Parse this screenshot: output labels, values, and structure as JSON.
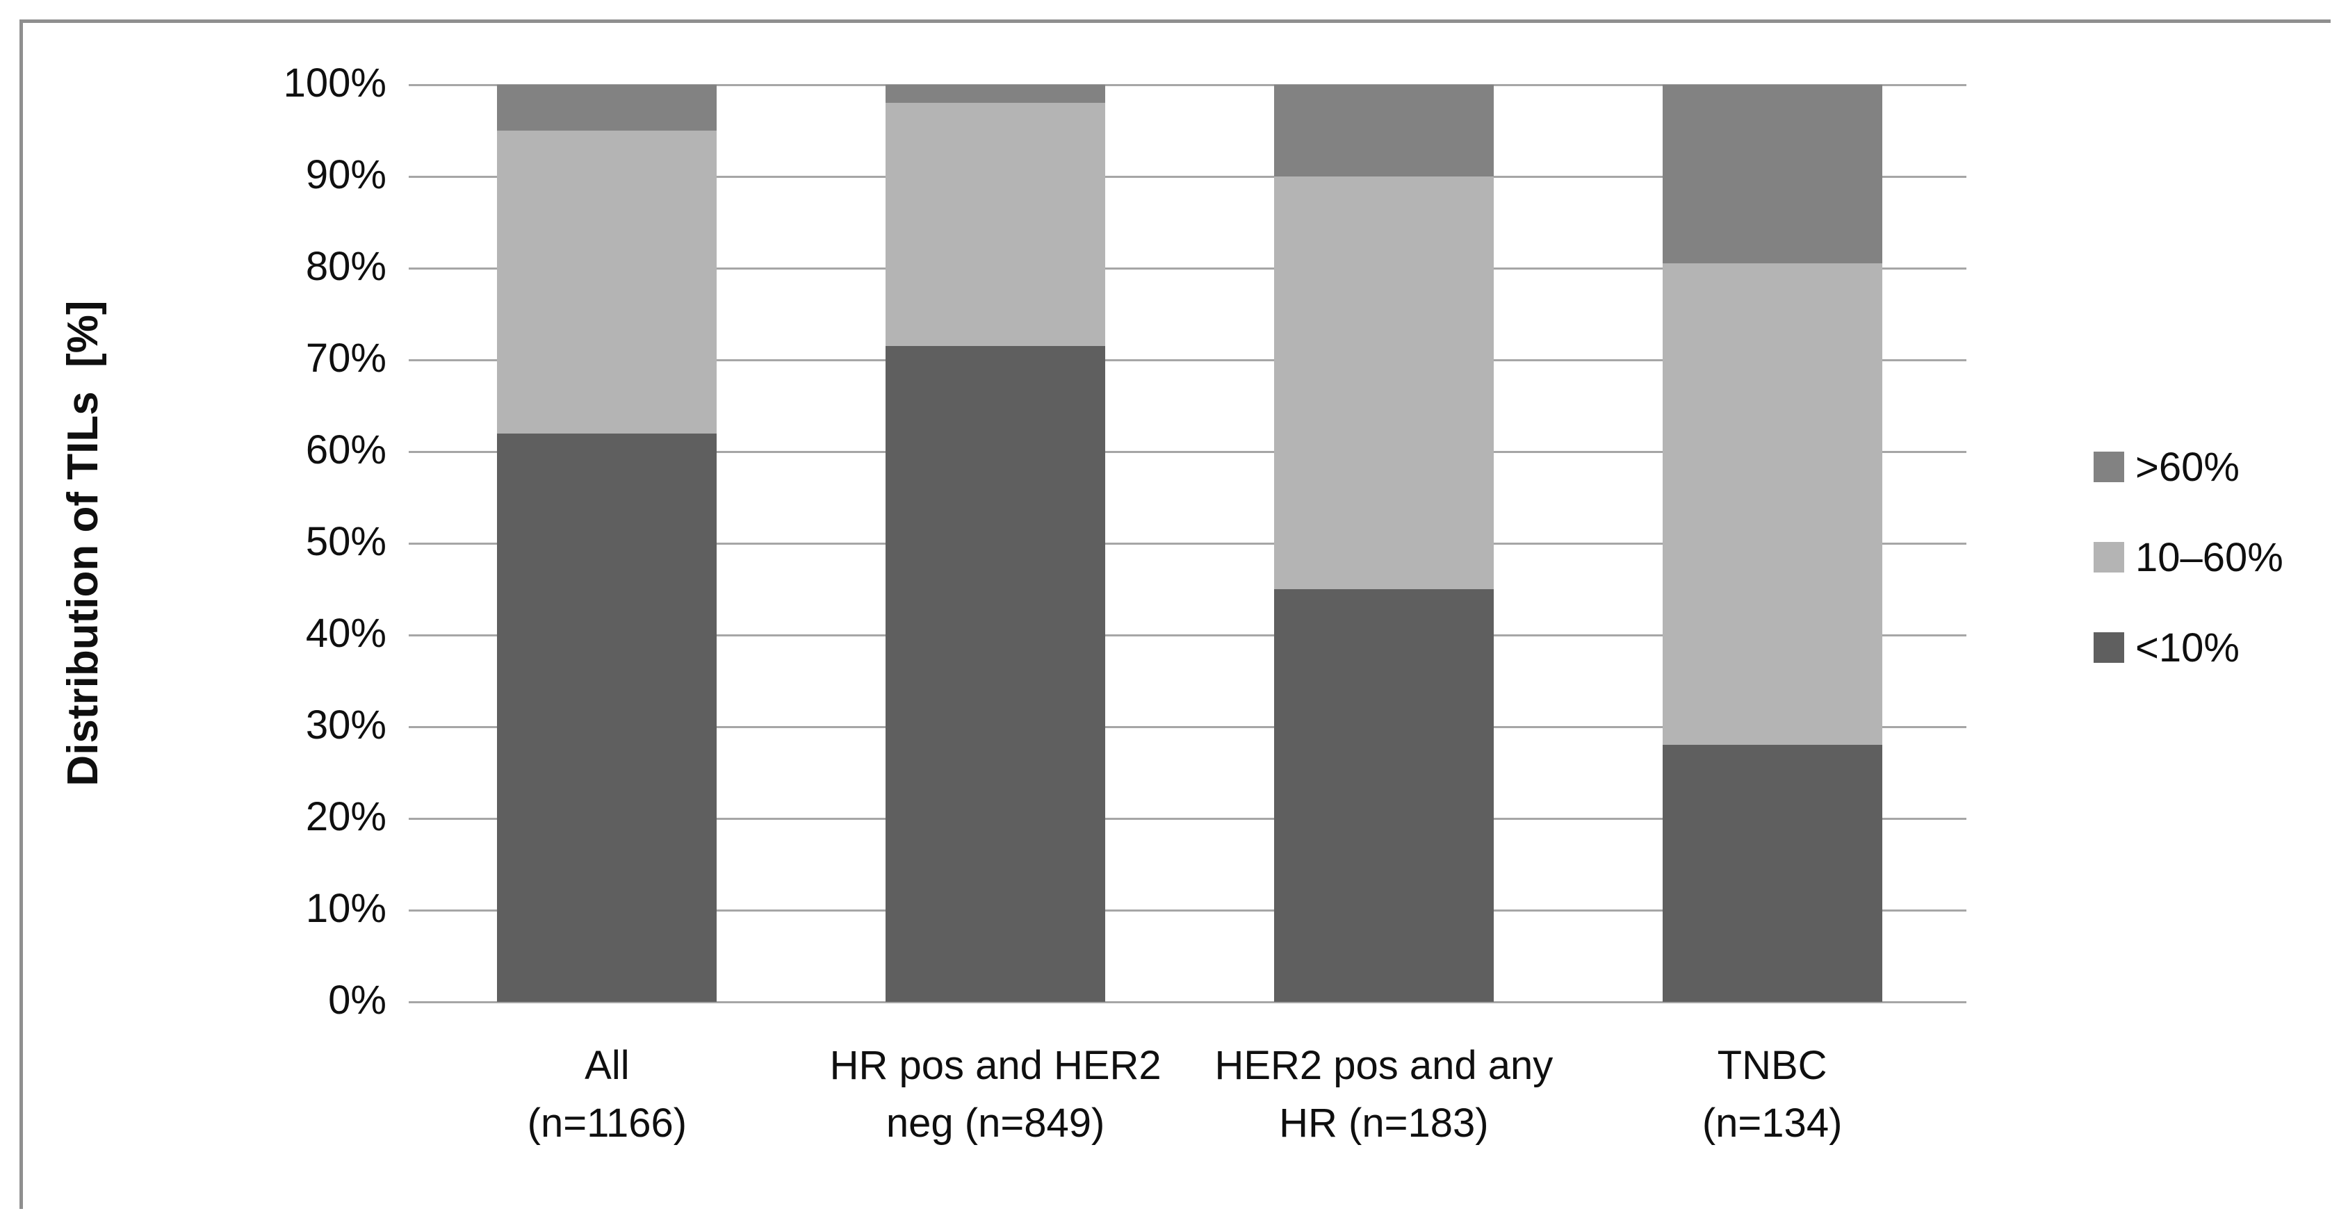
{
  "figure": {
    "y_axis": {
      "title": "Distribution of TILs  [%]",
      "ticks": [
        "100%",
        "90%",
        "80%",
        "70%",
        "60%",
        "50%",
        "40%",
        "30%",
        "20%",
        "10%",
        "0%"
      ]
    },
    "x_axis": {
      "labels": [
        [
          "All",
          "(n=1166)"
        ],
        [
          "HR pos and HER2",
          "neg (n=849)"
        ],
        [
          "HER2 pos and any",
          "HR (n=183)"
        ],
        [
          "TNBC",
          "(n=134)"
        ]
      ]
    },
    "legend": [
      {
        "label": ">60%",
        "color": "#828282"
      },
      {
        "label": "10–60%",
        "color": "#b4b4b4"
      },
      {
        "label": "<10%",
        "color": "#5f5f5f"
      }
    ],
    "colors": {
      "gridline": "#a6a6a6",
      "frame": "#8f8f8f",
      "text": "#0f0f0f"
    }
  },
  "chart_data": {
    "type": "bar",
    "stacked": true,
    "title": "",
    "xlabel": "",
    "ylabel": "Distribution of TILs [%]",
    "ylim": [
      0,
      100
    ],
    "ytick_step": 10,
    "grid": true,
    "legend_position": "right",
    "categories": [
      "All (n=1166)",
      "HR pos and HER2 neg (n=849)",
      "HER2 pos and any HR (n=183)",
      "TNBC (n=134)"
    ],
    "series": [
      {
        "name": "<10%",
        "color": "#5f5f5f",
        "values": [
          62.0,
          71.5,
          45.0,
          28.0
        ]
      },
      {
        "name": "10–60%",
        "color": "#b4b4b4",
        "values": [
          33.0,
          26.5,
          45.0,
          52.5
        ]
      },
      {
        "name": ">60%",
        "color": "#828282",
        "values": [
          5.0,
          2.0,
          10.0,
          19.5
        ]
      }
    ]
  }
}
